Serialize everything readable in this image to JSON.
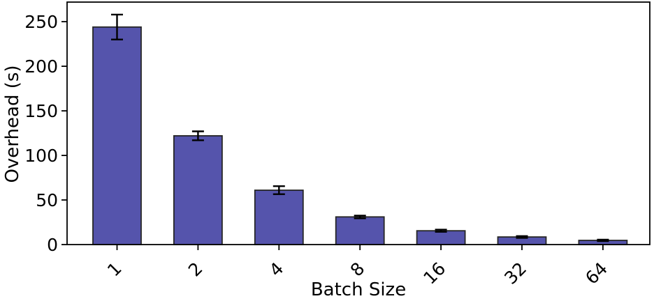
{
  "chart_data": {
    "type": "bar",
    "title": "",
    "xlabel": "Batch Size",
    "ylabel": "Overhead (s)",
    "categories": [
      "1",
      "2",
      "4",
      "8",
      "16",
      "32",
      "64"
    ],
    "values": [
      244,
      122,
      61,
      31,
      15.5,
      8.5,
      4.7
    ],
    "errors": [
      14,
      5,
      4.5,
      1.5,
      1.2,
      1.0,
      0.8
    ],
    "yticks": [
      0,
      50,
      100,
      150,
      200,
      250
    ],
    "ylim": [
      0,
      272
    ],
    "grid": false,
    "legend": null,
    "bar_color": "#5554AC",
    "bar_edge_color": "#262626",
    "error_color": "#000000",
    "axis_color": "#000000",
    "background_color": "#ffffff"
  }
}
